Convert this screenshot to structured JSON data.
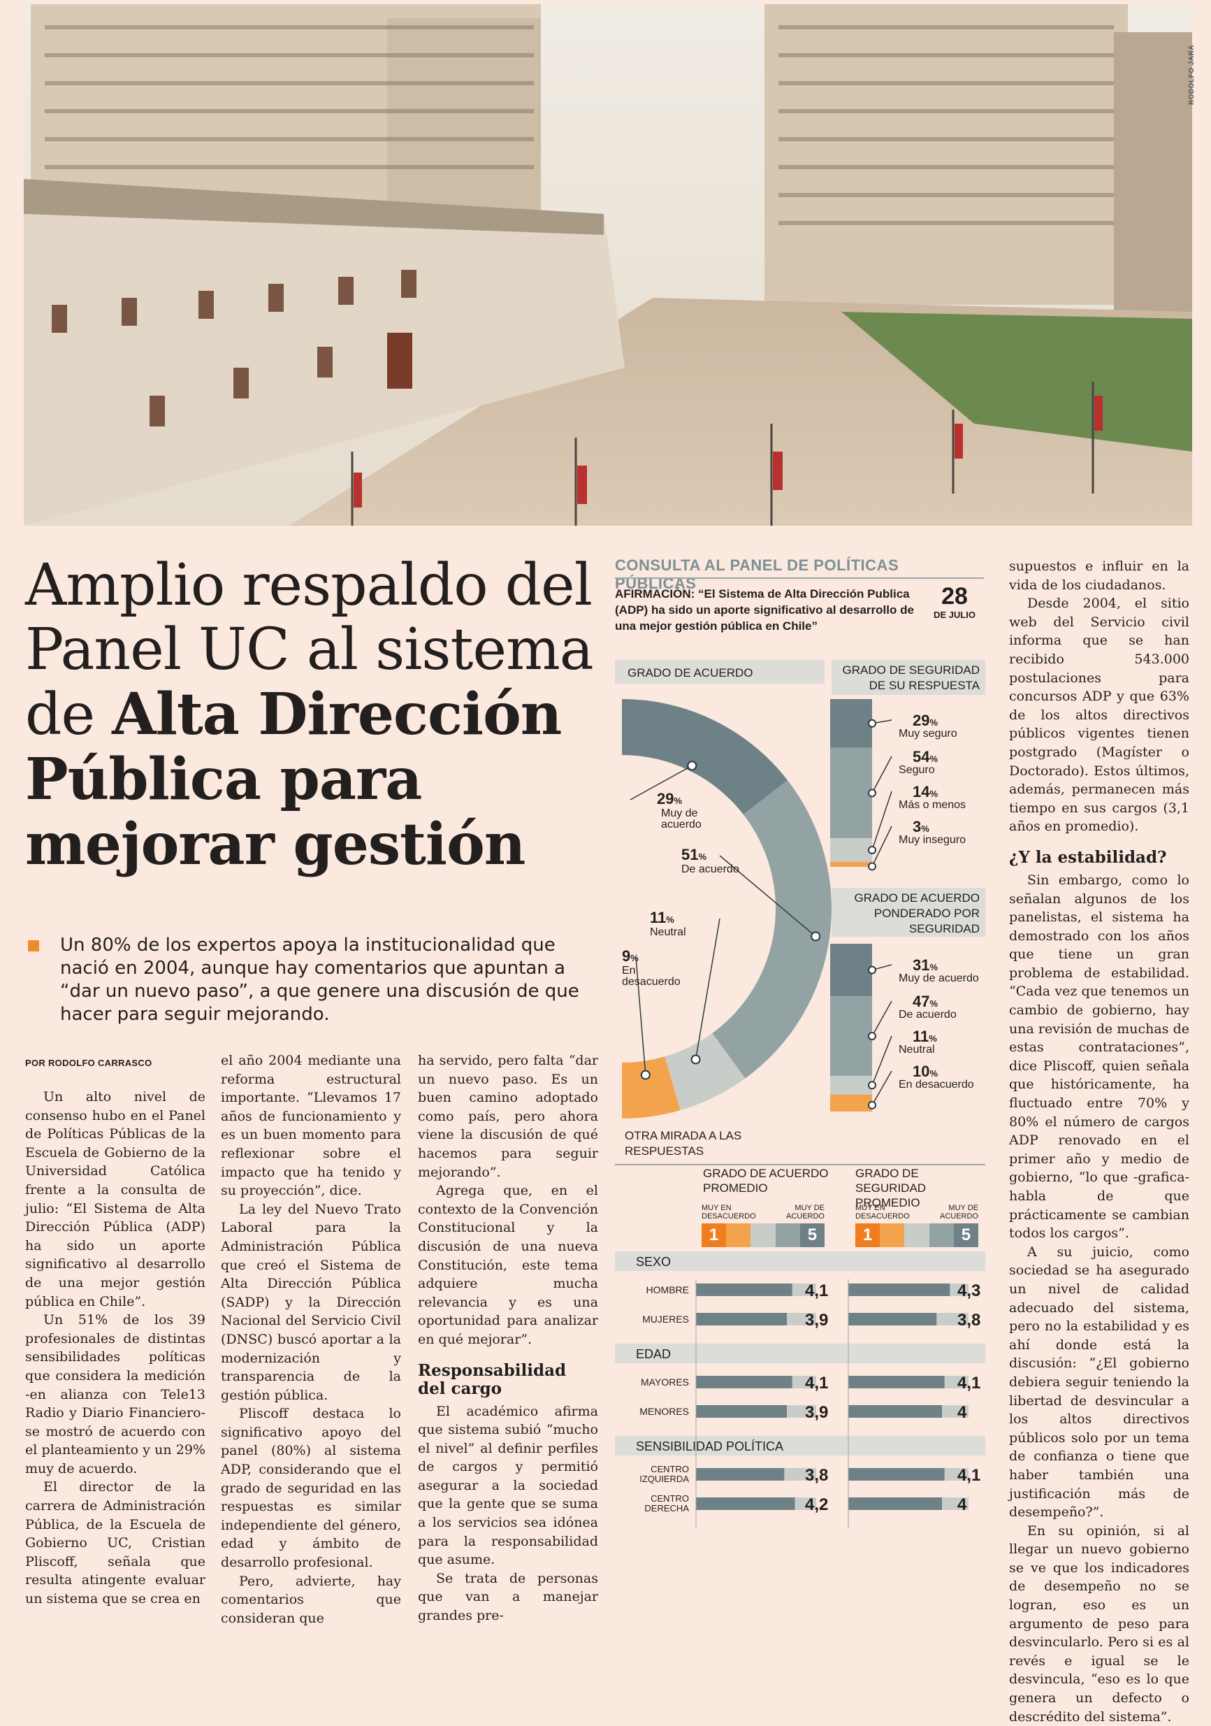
{
  "photo": {
    "credit": "RODOLFO JARA",
    "alt_icon": "la-moneda-photo"
  },
  "headline": {
    "line1": "Amplio respaldo del",
    "line2": "Panel UC al sistema",
    "line3_prefix": "de ",
    "line3_bold": "Alta Dirección",
    "line4": "Pública para",
    "line5": "mejorar gestión"
  },
  "lead": "Un 80% de los expertos apoya la institucionalidad que nació en 2004, aunque hay comentarios que apuntan a “dar un nuevo paso”, a que genere una discusión de que hacer para seguir mejorando.",
  "byline": "POR RODOLFO CARRASCO",
  "col1": [
    "Un alto nivel de consenso hubo en el Panel de Políticas Públicas de la Escuela de Gobierno de la Universidad Católica frente a la consulta de julio: “El Sistema de Alta Dirección Pública (ADP) ha sido un aporte significativo al desarrollo de una mejor gestión pública en Chile”.",
    "Un 51% de los 39 profesionales de distintas sensibilidades políticas que considera la medición -en alianza con Tele13 Radio y Diario Financiero- se mostró de acuerdo con el planteamiento y un 29% muy de acuerdo.",
    "El director de la carrera de Administración Pública, de la Escuela de Gobierno UC, Cristian Pliscoff, señala que resulta atingente evaluar un sistema que se crea en"
  ],
  "col2": [
    "el año 2004 mediante una reforma estructural importante. “Llevamos 17 años de funcionamiento y es un buen momento para reflexionar sobre el impacto que ha tenido y su proyección”, dice.",
    "La ley del Nuevo Trato Laboral para la Administración Pública que creó el Sistema de Alta Dirección Pública (SADP) y la Dirección Nacional del Servicio Civil (DNSC) buscó aportar a la modernización y transparencia de la gestión pública.",
    "Pliscoff destaca lo significativo apoyo del panel (80%) al sistema ADP, considerando que el grado de seguridad en las respuestas es similar independiente del género, edad y ámbito de desarrollo profesional.",
    "Pero, advierte, hay comentarios que consideran que"
  ],
  "col3": [
    "ha servido, pero falta “dar un nuevo paso. Es un buen camino adoptado como país, pero ahora viene la discusión de qué hacemos para seguir mejorando”.",
    "Agrega que, en el contexto de la Convención Constitucional y la discusión de una nueva Constitución, este tema adquiere mucha relevancia y es una oportunidad para analizar en qué mejorar”."
  ],
  "col3_sub": "Responsabilidad del cargo",
  "col3b": [
    "El académico afirma que sistema subió “mucho el nivel” al definir perfiles de cargos y permitió asegurar a la sociedad que la gente que se suma a los servicios sea idónea para la responsabilidad que asume.",
    "Se trata de personas que van a manejar grandes pre-"
  ],
  "col4": [
    "supuestos e influir en la vida de los ciudadanos.",
    "Desde 2004, el sitio web del Servicio civil informa que se han recibido 543.000 postulaciones para concursos ADP y que 63% de los altos directivos públicos vigentes tienen postgrado (Magíster o Doctorado). Estos últimos, además, permanecen más tiempo en sus cargos (3,1 años en promedio)."
  ],
  "col4_sub": "¿Y la estabilidad?",
  "col4b": [
    "Sin embargo, como lo señalan algunos de los panelistas, el sistema ha demostrado con los años que tiene un gran problema de estabilidad. “Cada vez que tenemos un cambio de gobierno, hay una revisión de muchas de estas contrataciones”, dice Pliscoff, quien señala que históricamente, ha fluctuado entre 70% y 80% el número de cargos ADP renovado en el primer año y medio de gobierno, “lo que -grafica- habla de que prácticamente se cambian todos los cargos”.",
    "A su juicio, como sociedad se ha asegurado un nivel de calidad adecuado del sistema, pero no la estabilidad y es ahí donde está la discusión: “¿El gobierno debiera seguir teniendo la libertad de desvincular a los altos directivos públicos solo por un tema de confianza o tiene que haber también una justificación más de desempeño?”.",
    "En su opinión, si al llegar un nuevo gobierno se ve que los indicadores de desempeño no se logran, eso es un argumento de peso para desvincularlo. Pero si es al revés e igual se le desvincula, “eso es lo que genera un defecto o descrédito del sistema”."
  ],
  "info": {
    "title": "CONSULTA AL PANEL DE POLÍTICAS PÚBLICAS",
    "affirm": "AFIRMACIÓN: “El Sistema de Alta Dirección Publica (ADP) ha sido un aporte significativo al desarrollo de una mejor gestión pública en Chile”",
    "date_day": "28",
    "date_month": "DE JULIO",
    "acuerdo_header": "GRADO DE ACUERDO",
    "seguridad_header": "GRADO DE SEGURIDAD DE SU RESPUESTA",
    "ponderado_header": "GRADO DE ACUERDO PONDERADO POR SEGURIDAD",
    "otra_header": "OTRA MIRADA A LAS RESPUESTAS",
    "prom_acuerdo": "GRADO DE ACUERDO PROMEDIO",
    "prom_seguridad": "GRADO DE SEGURIDAD PROMEDIO",
    "scale_left": "MUY EN DESACUERDO",
    "scale_right": "MUY DE ACUERDO",
    "scale_1": "1",
    "scale_5": "5",
    "pct_sign": "%"
  },
  "chart_data": [
    {
      "type": "pie",
      "title": "GRADO DE ACUERDO",
      "categories": [
        "Muy de acuerdo",
        "De acuerdo",
        "Neutral",
        "En desacuerdo"
      ],
      "values": [
        29,
        51,
        11,
        9
      ],
      "colors": [
        "#6d8186",
        "#93a3a4",
        "#c9cdca",
        "#f4a34d"
      ]
    },
    {
      "type": "bar",
      "title": "GRADO DE SEGURIDAD DE SU RESPUESTA",
      "categories": [
        "Muy seguro",
        "Seguro",
        "Más o menos",
        "Muy inseguro"
      ],
      "values": [
        29,
        54,
        14,
        3
      ],
      "colors": [
        "#6d8186",
        "#93a3a4",
        "#c9cdca",
        "#f4a34d"
      ]
    },
    {
      "type": "bar",
      "title": "GRADO DE ACUERDO PONDERADO POR SEGURIDAD",
      "categories": [
        "Muy de acuerdo",
        "De acuerdo",
        "Neutral",
        "En desacuerdo"
      ],
      "values": [
        31,
        47,
        11,
        10
      ],
      "colors": [
        "#6d8186",
        "#93a3a4",
        "#c9cdca",
        "#f4a34d"
      ]
    },
    {
      "type": "bar",
      "title": "OTRA MIRADA A LAS RESPUESTAS",
      "groups": [
        {
          "name": "SEXO",
          "rows": [
            {
              "label": "HOMBRE",
              "acuerdo": 4.1,
              "seguridad": 4.3
            },
            {
              "label": "MUJERES",
              "acuerdo": 3.9,
              "seguridad": 3.8
            }
          ]
        },
        {
          "name": "EDAD",
          "rows": [
            {
              "label": "MAYORES",
              "acuerdo": 4.1,
              "seguridad": 4.1
            },
            {
              "label": "MENORES",
              "acuerdo": 3.9,
              "seguridad": 4.0
            }
          ]
        },
        {
          "name": "SENSIBILIDAD POLÍTICA",
          "rows": [
            {
              "label": "CENTRO IZQUIERDA",
              "acuerdo": 3.8,
              "seguridad": 4.1
            },
            {
              "label": "CENTRO DERECHA",
              "acuerdo": 4.2,
              "seguridad": 4.0
            }
          ]
        }
      ],
      "series": [
        {
          "name": "GRADO DE ACUERDO PROMEDIO"
        },
        {
          "name": "GRADO DE SEGURIDAD PROMEDIO"
        }
      ],
      "xlim": [
        1,
        5
      ]
    }
  ]
}
